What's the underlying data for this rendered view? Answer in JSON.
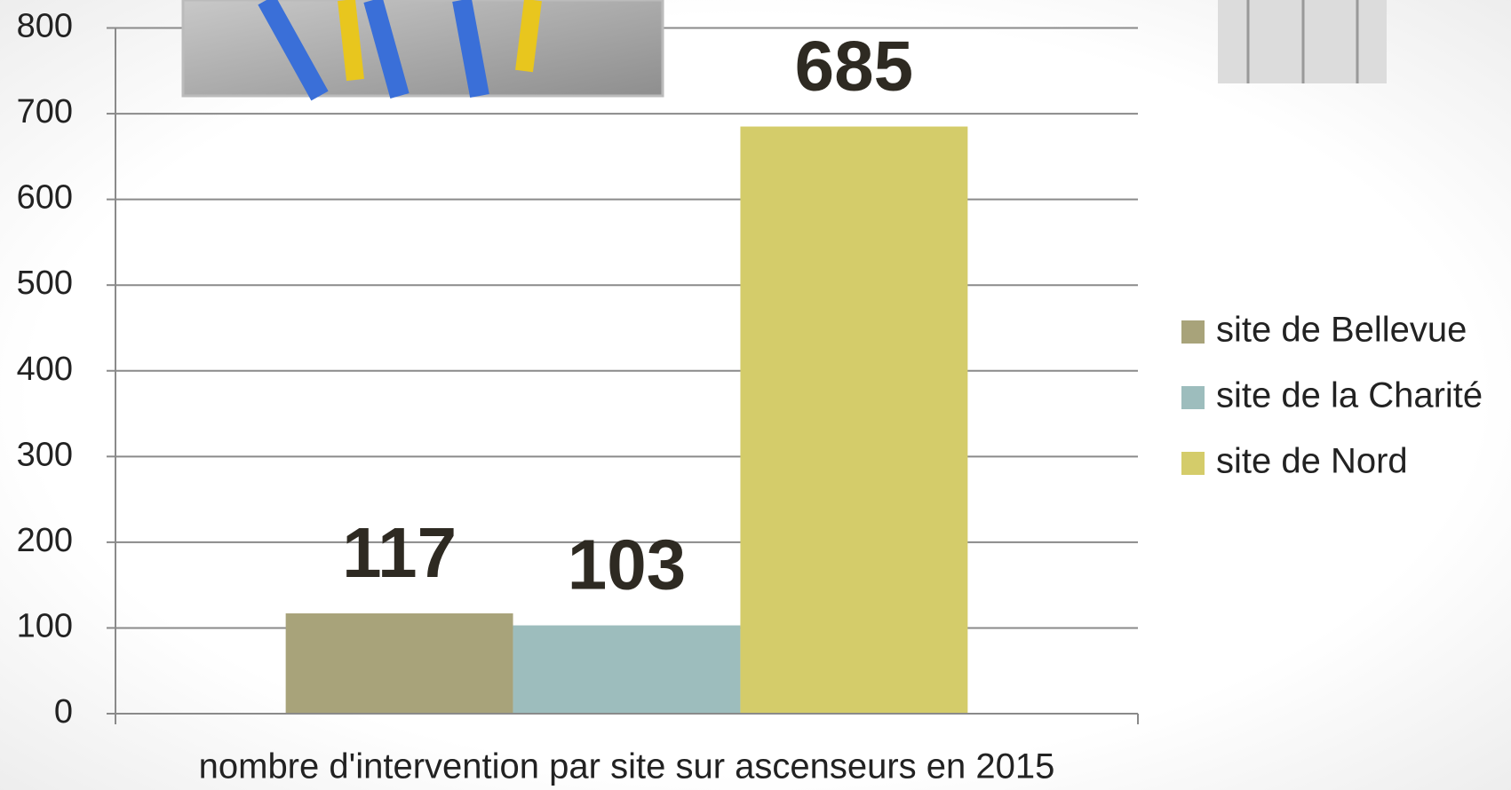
{
  "chart_data": {
    "type": "bar",
    "categories": [
      "nombre d'intervention par site sur ascenseurs en 2015"
    ],
    "series": [
      {
        "name": "site de Bellevue",
        "color": "#a8a37a",
        "values": [
          117
        ]
      },
      {
        "name": "site de la Charité",
        "color": "#9dbdbd",
        "values": [
          103
        ]
      },
      {
        "name": "site de Nord",
        "color": "#d4cc6a",
        "values": [
          685
        ]
      }
    ],
    "ylim": [
      0,
      800
    ],
    "yticks": [
      0,
      100,
      200,
      300,
      400,
      500,
      600,
      700,
      800
    ],
    "grid": true,
    "legend": "right"
  }
}
